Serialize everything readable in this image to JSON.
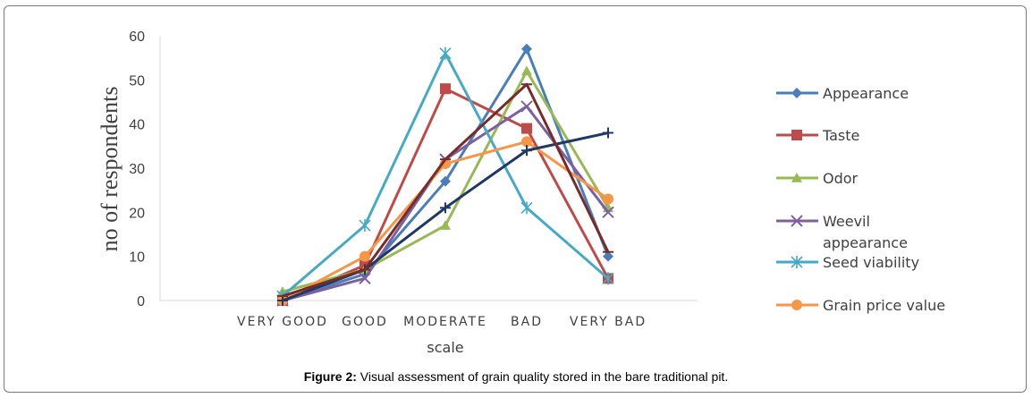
{
  "caption": {
    "label": "Figure 2:",
    "text": "Visual assessment of grain quality stored in the bare traditional pit."
  },
  "chart_data": {
    "type": "line",
    "title": "",
    "xlabel": "scale",
    "ylabel": "no of respondents",
    "ylim": [
      0,
      60
    ],
    "yticks": [
      0,
      10,
      20,
      30,
      40,
      50,
      60
    ],
    "grid": false,
    "legend": "right",
    "categories": [
      "VERY GOOD",
      "GOOD",
      "MODERATE",
      "BAD",
      "VERY BAD"
    ],
    "series": [
      {
        "name": "Appearance",
        "color": "#4a7ebb",
        "marker": "diamond",
        "values": [
          0,
          6,
          27,
          57,
          10
        ]
      },
      {
        "name": "Taste",
        "color": "#be4b48",
        "marker": "square",
        "values": [
          0,
          8,
          48,
          39,
          5
        ]
      },
      {
        "name": "Odor",
        "color": "#98b954",
        "marker": "triangle",
        "values": [
          2,
          7,
          17,
          52,
          21
        ]
      },
      {
        "name": "Weevil appearance",
        "color": "#7d60a0",
        "marker": "x",
        "values": [
          0,
          5,
          32,
          44,
          20
        ]
      },
      {
        "name": "Seed viability",
        "color": "#46aac5",
        "marker": "asterisk",
        "values": [
          1,
          17,
          56,
          21,
          5
        ]
      },
      {
        "name": "Grain price value",
        "color": "#f79646",
        "marker": "circle",
        "values": [
          0,
          10,
          31,
          36,
          23
        ]
      },
      {
        "name": "",
        "color": "#1f3864",
        "marker": "plus",
        "values": [
          0,
          7,
          21,
          34,
          38
        ]
      },
      {
        "name": "",
        "color": "#772c2a",
        "marker": "dash",
        "values": [
          1,
          7,
          32,
          49,
          11
        ]
      }
    ]
  }
}
